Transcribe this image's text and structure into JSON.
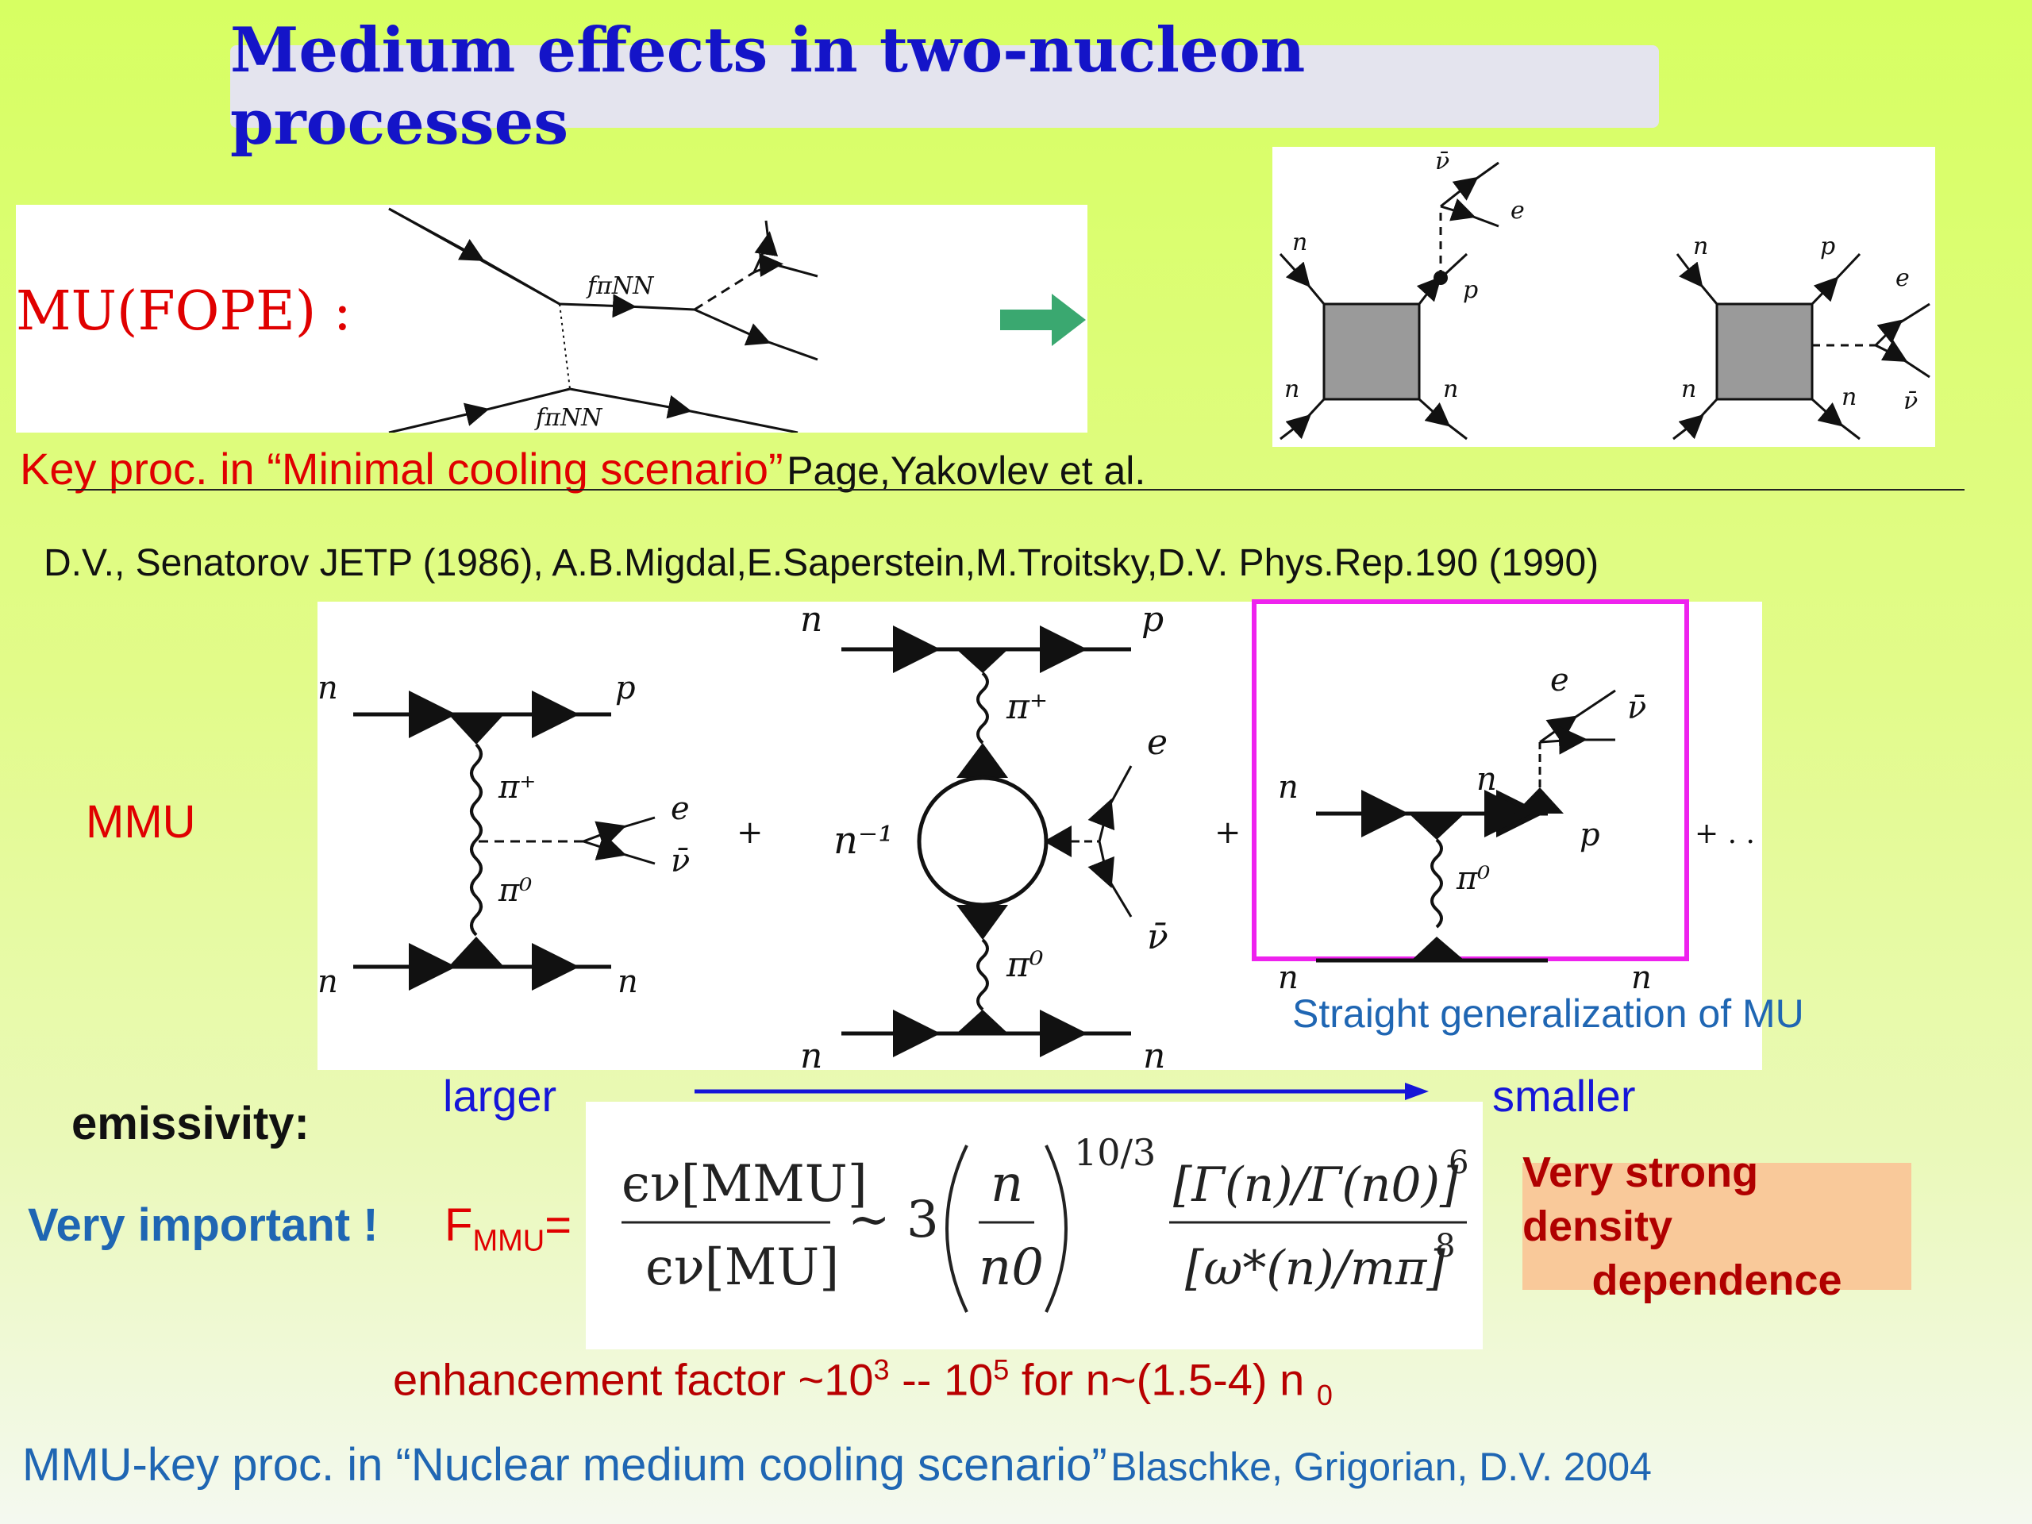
{
  "title": "Medium effects in two-nucleon processes",
  "mu_fope": {
    "label": "MU(FOPE) :",
    "vertex_label": "fπNN"
  },
  "right_diagrams": {
    "left": {
      "top": "ν̄",
      "e": "e",
      "n_tl": "n",
      "p": "p",
      "n_bl": "n",
      "n_br": "n"
    },
    "right": {
      "n_tl": "n",
      "p": "p",
      "e": "e",
      "n_bl": "n",
      "n_br": "n",
      "nubar": "ν̄"
    }
  },
  "key_proc": {
    "text": "Key proc. in “Minimal cooling scenario”",
    "ref": "Page,Yakovlev et al."
  },
  "references": "D.V., Senatorov JETP (1986), A.B.Migdal,E.Saperstein,M.Troitsky,D.V. Phys.Rep.190 (1990)",
  "mmu_label": "MMU",
  "mmu_diagrams": {
    "d1": {
      "n_tl": "n",
      "p": "p",
      "pi_plus": "π⁺",
      "pi_zero": "π⁰",
      "e": "e",
      "nubar": "ν̄",
      "n_bl": "n",
      "n_br": "n"
    },
    "plus1": "+",
    "d2": {
      "n_tl": "n",
      "p": "p",
      "pi_plus": "π⁺",
      "n_inv": "n⁻¹",
      "e": "e",
      "nubar": "ν̄",
      "pi_zero": "π⁰",
      "n_bl": "n",
      "n_br": "n"
    },
    "plus2": "+",
    "d3": {
      "e": "e",
      "nubar": "ν̄",
      "n_l": "n",
      "n_mid": "n",
      "p": "p",
      "pi_zero": "π⁰",
      "n_bl": "n",
      "n_br": "n"
    },
    "ellipsis": "+ . . ."
  },
  "straight_generalization": "Straight generalization of MU",
  "scale": {
    "larger": "larger",
    "smaller": "smaller"
  },
  "emissivity_label": "emissivity:",
  "very_important": "Very important !",
  "f_mmu": {
    "F": "F",
    "sub": "MMU",
    "eq": "="
  },
  "formula": {
    "lhs_num": "ϵν[MMU]",
    "lhs_den": "ϵν[MU]",
    "sim": "∼ 3",
    "n": "n",
    "n0": "n0",
    "exponent": "10/3",
    "rhs_num": "[Γ(n)/Γ(n0)]",
    "rhs_num_exp": "6",
    "rhs_den": "[ω*(n)/mπ]",
    "rhs_den_exp": "8"
  },
  "density_box": {
    "line1": "Very strong density",
    "line2": "dependence"
  },
  "enhancement": {
    "prefix": "enhancement  factor ~10",
    "exp1": "3",
    "mid": " -- 10",
    "exp2": "5",
    "suffix": " for n~(1.5-4) n ",
    "sub": "0"
  },
  "footer": {
    "text": "MMU-key proc. in “Nuclear medium cooling scenario”",
    "ref": "Blaschke, Grigorian, D.V. 2004"
  },
  "colors": {
    "title": "#1414c8",
    "highlight_box": "#ee22ee",
    "arrow_green": "#3aa870",
    "scale_arrow": "#1616d8",
    "density_box_bg": "#f9c99a"
  }
}
